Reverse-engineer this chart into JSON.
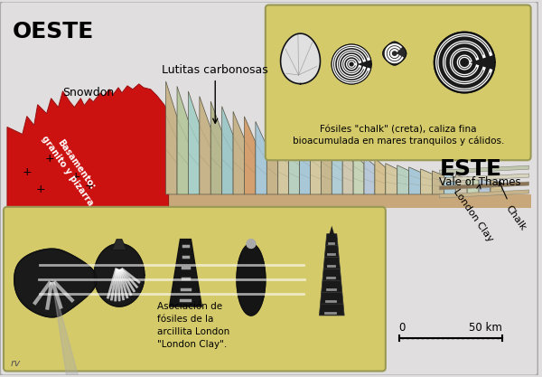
{
  "bg_color": "#e0dede",
  "fig_bg": "#e0dede",
  "title_oeste": "OESTE",
  "title_este": "ESTE",
  "label_snowdon": "Snowdon",
  "label_lutitas": "Lutitas carbonosas",
  "label_basamento": "Basamento:\ngranito y pizarra",
  "label_vale": "Vale of Thames",
  "label_chalk": "Chalk",
  "label_london_clay": "London Clay",
  "label_fosiles_chalk": "Fósiles \"chalk\" (creta), caliza fina\nbioacumulada en mares tranquilos y cálidos.",
  "label_asociacion": "Asociación de\nfósiles de la\narcillita London\n\"London Clay\".",
  "label_scale_0": "0",
  "label_scale_50": "50 km",
  "label_rv": "rv",
  "yellow_box_color": "#d4ca6a",
  "red_color": "#cc1111",
  "tan_color": "#c8a87a"
}
